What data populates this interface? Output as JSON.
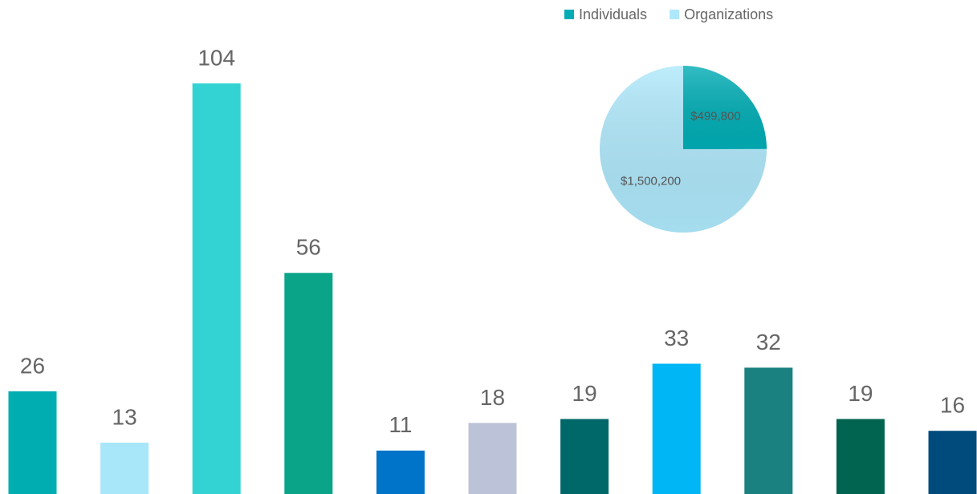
{
  "chart_data": [
    {
      "type": "bar",
      "values": [
        26,
        13,
        104,
        56,
        11,
        18,
        19,
        33,
        32,
        19,
        16
      ],
      "colors": [
        "#00adb0",
        "#a8e6fa",
        "#33d3d3",
        "#0aa488",
        "#0074c8",
        "#bcc2d8",
        "#006868",
        "#00b6f5",
        "#1a8080",
        "#006450",
        "#004a7c"
      ]
    },
    {
      "type": "pie",
      "categories": [
        "Individuals",
        "Organizations"
      ],
      "values": [
        499800,
        1500200
      ],
      "value_labels": [
        "$499,800",
        "$1,500,200"
      ],
      "colors": [
        "#00adb5",
        "#aee8fb"
      ],
      "legend": "top"
    }
  ]
}
